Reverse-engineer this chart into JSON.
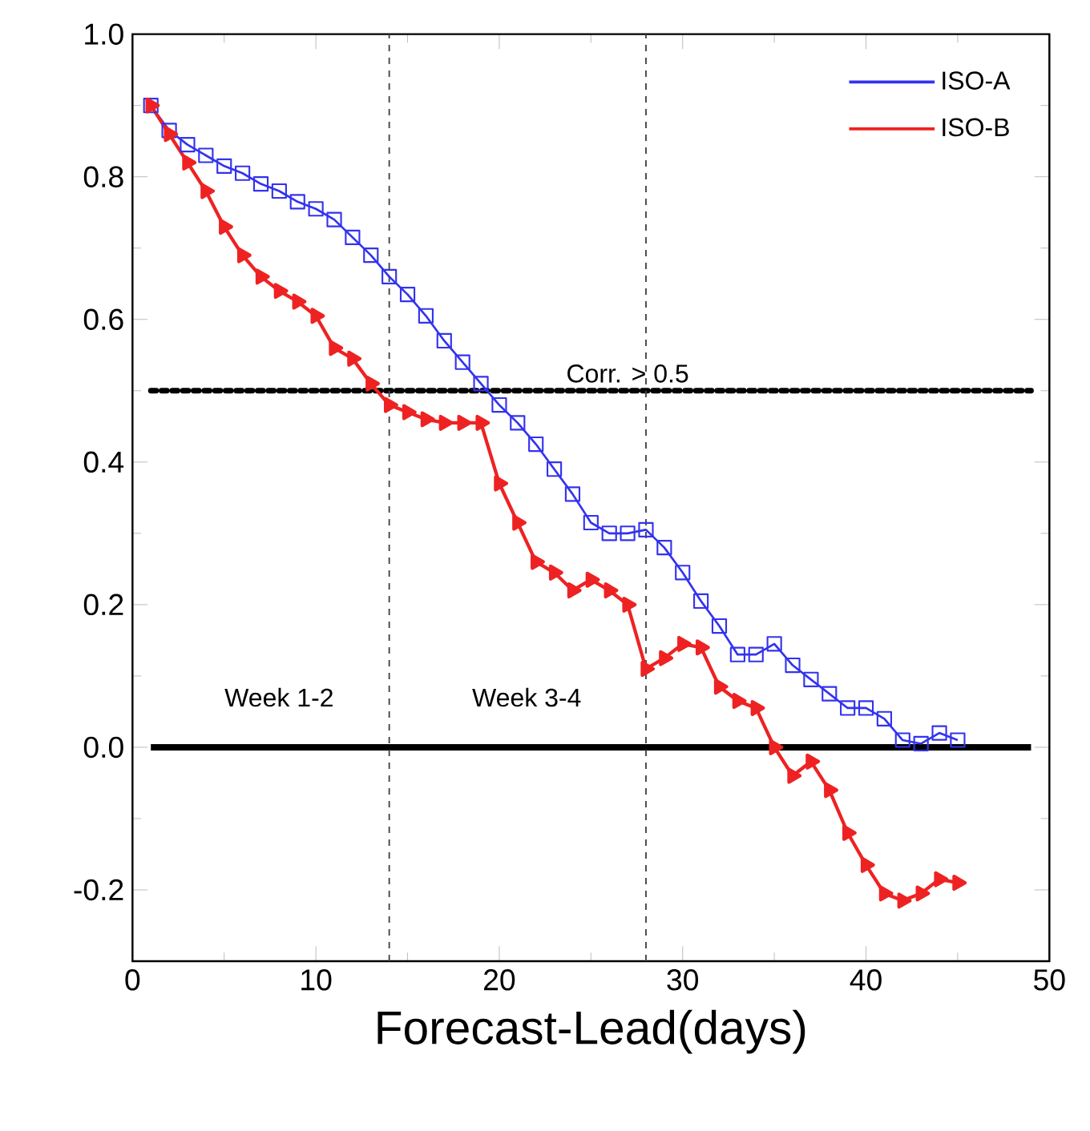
{
  "chart_data": {
    "type": "line",
    "xlabel": "Forecast-Lead(days)",
    "x": [
      1,
      2,
      3,
      4,
      5,
      6,
      7,
      8,
      9,
      10,
      11,
      12,
      13,
      14,
      15,
      16,
      17,
      18,
      19,
      20,
      21,
      22,
      23,
      24,
      25,
      26,
      27,
      28,
      29,
      30,
      31,
      32,
      33,
      34,
      35,
      36,
      37,
      38,
      39,
      40,
      41,
      42,
      43,
      44,
      45
    ],
    "series": [
      {
        "name": "ISO-A",
        "color": "#3333ee",
        "marker": "square",
        "values": [
          0.9,
          0.865,
          0.845,
          0.83,
          0.815,
          0.805,
          0.79,
          0.78,
          0.765,
          0.755,
          0.74,
          0.715,
          0.69,
          0.66,
          0.635,
          0.605,
          0.57,
          0.54,
          0.51,
          0.48,
          0.455,
          0.425,
          0.39,
          0.355,
          0.315,
          0.3,
          0.3,
          0.305,
          0.28,
          0.245,
          0.205,
          0.17,
          0.13,
          0.13,
          0.145,
          0.115,
          0.095,
          0.075,
          0.055,
          0.055,
          0.04,
          0.01,
          0.005,
          0.02,
          0.01
        ]
      },
      {
        "name": "ISO-B",
        "color": "#ee2222",
        "marker": "triangle",
        "values": [
          0.9,
          0.86,
          0.82,
          0.78,
          0.73,
          0.69,
          0.66,
          0.64,
          0.625,
          0.605,
          0.56,
          0.545,
          0.51,
          0.48,
          0.47,
          0.46,
          0.455,
          0.455,
          0.455,
          0.37,
          0.315,
          0.26,
          0.245,
          0.22,
          0.235,
          0.22,
          0.2,
          0.11,
          0.125,
          0.145,
          0.14,
          0.085,
          0.065,
          0.055,
          0.0,
          -0.04,
          -0.02,
          -0.06,
          -0.12,
          -0.165,
          -0.205,
          -0.215,
          -0.205,
          -0.185,
          -0.19
        ]
      }
    ],
    "xlim": [
      0,
      50
    ],
    "xticks": [
      0,
      10,
      20,
      30,
      40,
      50
    ],
    "ylim": [
      -0.3,
      1.0
    ],
    "yticks": [
      -0.2,
      {
        "value": 0,
        "label": "0.0"
      },
      0.2,
      0.4,
      0.6,
      0.8,
      {
        "value": 1.0,
        "label": "1.0"
      }
    ],
    "ref_lines": [
      {
        "axis": "y",
        "value": 0.5,
        "label": "Corr. > 0.5",
        "color": "#000000",
        "line_style": "dotted"
      },
      {
        "axis": "y",
        "value": 0,
        "color": "#000000",
        "line_style": "solid"
      },
      {
        "axis": "x",
        "value": 14,
        "color": "#444444",
        "line_style": "dashed"
      },
      {
        "axis": "x",
        "value": 28,
        "color": "#444444",
        "line_style": "dashed"
      }
    ],
    "annotations": [
      "Week 1-2",
      "Week 3-4"
    ],
    "legend": "top right",
    "grid": false,
    "line_style": "solid"
  }
}
